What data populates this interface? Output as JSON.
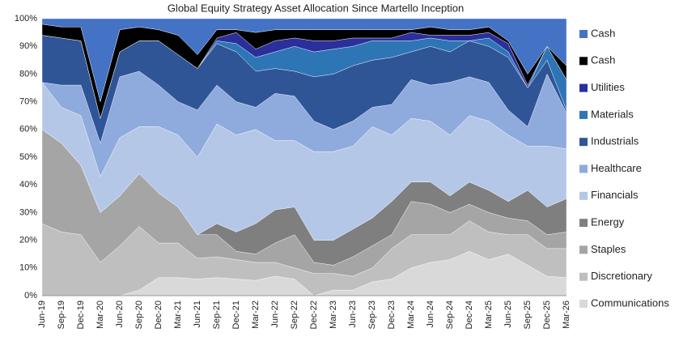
{
  "chart_data": {
    "type": "stacked_area",
    "title": "Global Equity Strategy Asset Allocation Since  Martello Inception",
    "categories": [
      "Jun-19",
      "Sep-19",
      "Dec-19",
      "Mar-20",
      "Jun-20",
      "Sep-20",
      "Dec-20",
      "Mar-21",
      "Jun-21",
      "Sep-21",
      "Dec-21",
      "Mar-22",
      "Jun-22",
      "Sep-22",
      "Dec-22",
      "Mar-23",
      "Jun-23",
      "Sep-23",
      "Dec-23",
      "Mar-24",
      "Jun-24",
      "Sep-24",
      "Dec-24",
      "Mar-25",
      "Jun-25",
      "Sep-25",
      "Dec-25",
      "Mar-26"
    ],
    "ylim": [
      0,
      100
    ],
    "yticks": [
      {
        "value": 0,
        "label": "0%"
      },
      {
        "value": 10,
        "label": "10%"
      },
      {
        "value": 20,
        "label": "20%"
      },
      {
        "value": 30,
        "label": "30%"
      },
      {
        "value": 40,
        "label": "40%"
      },
      {
        "value": 50,
        "label": "50%"
      },
      {
        "value": 60,
        "label": "60%"
      },
      {
        "value": 70,
        "label": "70%"
      },
      {
        "value": 80,
        "label": "80%"
      },
      {
        "value": 90,
        "label": "90%"
      },
      {
        "value": 100,
        "label": "100%"
      }
    ],
    "legend": "right",
    "series": [
      {
        "name": "Communications",
        "color": "#d9d9d9",
        "values": [
          0,
          0,
          0,
          0,
          0,
          2,
          6.5,
          6.5,
          6,
          6.5,
          6,
          5.5,
          7,
          6,
          0,
          2,
          2,
          5,
          6,
          10,
          12,
          13,
          16,
          13,
          15,
          11,
          7,
          6.5
        ]
      },
      {
        "name": "Discretionary",
        "color": "#bfbfbf",
        "values": [
          26,
          23,
          22,
          12,
          18,
          23,
          12.5,
          12.5,
          7.5,
          7.5,
          7,
          6.5,
          5,
          4,
          8,
          6,
          5,
          5,
          11,
          12,
          10,
          9,
          11,
          10,
          7,
          11,
          10,
          10.5
        ]
      },
      {
        "name": "Staples",
        "color": "#a5a5a5",
        "values": [
          34,
          32,
          25,
          18,
          18,
          19,
          18,
          13,
          8.5,
          8,
          3,
          3,
          7,
          12,
          4,
          3,
          7,
          8,
          5,
          12,
          11,
          8,
          6,
          7,
          6,
          5,
          5,
          6
        ]
      },
      {
        "name": "Energy",
        "color": "#7f7f7f",
        "values": [
          0,
          0,
          0,
          0,
          0,
          0,
          0,
          0,
          0,
          4,
          7,
          11,
          12,
          10,
          8,
          9,
          10,
          10,
          12,
          7,
          8,
          6,
          8,
          8,
          6,
          11,
          10,
          12
        ]
      },
      {
        "name": "Financials",
        "color": "#b4c7e7",
        "values": [
          17,
          13,
          18,
          13,
          21,
          17,
          24,
          26,
          28,
          36,
          35,
          34,
          25,
          24,
          32,
          32,
          30,
          33,
          24,
          23,
          22,
          22,
          24,
          25,
          24,
          16,
          22,
          18
        ]
      },
      {
        "name": "Healthcare",
        "color": "#8faadc",
        "values": [
          0,
          8,
          11,
          12,
          22,
          20,
          15,
          12,
          17,
          14,
          12,
          8,
          17,
          16,
          11,
          8,
          9,
          7,
          11,
          14,
          13,
          19,
          14,
          14,
          9,
          7,
          26,
          13
        ]
      },
      {
        "name": "Industrials",
        "color": "#2f5597",
        "values": [
          17,
          17,
          16,
          9,
          9,
          11,
          16,
          17,
          15,
          15,
          18,
          13,
          9,
          9,
          16,
          20,
          20,
          17,
          17,
          10,
          14,
          11,
          13,
          13,
          19,
          14,
          5,
          1
        ]
      },
      {
        "name": "Materials",
        "color": "#2e75b6",
        "values": [
          0,
          0,
          0,
          0,
          0,
          0,
          0,
          0,
          0,
          1,
          3,
          5,
          6,
          9,
          9,
          9,
          7,
          7,
          6,
          4,
          3,
          4,
          0,
          3,
          2,
          0,
          5,
          11
        ]
      },
      {
        "name": "Utilities",
        "color": "#2a2f9c",
        "values": [
          0,
          0,
          0,
          0,
          0,
          0,
          0,
          0,
          0,
          1,
          4,
          3,
          4,
          3,
          4,
          3,
          3,
          1,
          1,
          3,
          1,
          2,
          2,
          2,
          3,
          1,
          0,
          0
        ]
      },
      {
        "name": "Cash",
        "color": "#000000",
        "values": [
          4,
          4,
          5,
          6,
          8,
          5,
          4,
          7,
          5,
          3,
          1,
          6,
          4,
          3,
          4,
          4,
          3,
          3,
          3,
          1,
          3,
          2,
          2,
          2,
          1,
          4,
          0,
          5
        ]
      },
      {
        "name": "Cash",
        "color": "#4472c4",
        "values": [
          2,
          3,
          3,
          30,
          4,
          3,
          4,
          6,
          13,
          4,
          4,
          5,
          4,
          4,
          4,
          4,
          4,
          4,
          4,
          4,
          3,
          4,
          4,
          3,
          8,
          20,
          10,
          17
        ]
      }
    ]
  }
}
